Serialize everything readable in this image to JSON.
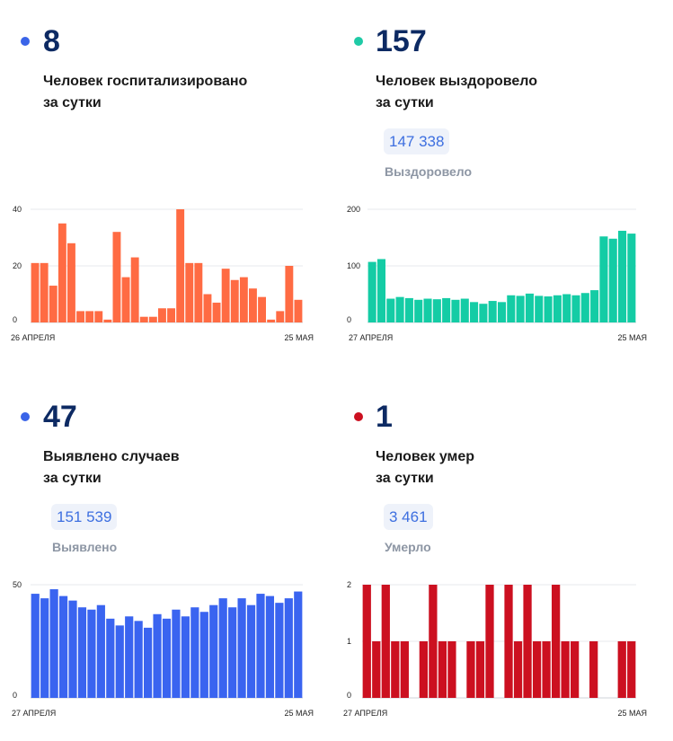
{
  "panels": [
    {
      "id": "hospitalized",
      "big_number": "8",
      "caption_line1": "Человек госпитализировано",
      "caption_line2": "за сутки",
      "dot_color": "#3a64e8"
    },
    {
      "id": "recovered",
      "big_number": "157",
      "caption_line1": "Человек выздоровело",
      "caption_line2": "за сутки",
      "total_value": "147 338",
      "total_label": "Выздоровело",
      "dot_color": "#1fcaa6"
    },
    {
      "id": "detected",
      "big_number": "47",
      "caption_line1": "Выявлено случаев",
      "caption_line2": "за сутки",
      "total_value": "151 539",
      "total_label": "Выявлено",
      "dot_color": "#3a64e8"
    },
    {
      "id": "deaths",
      "big_number": "1",
      "caption_line1": "Человек умер",
      "caption_line2": "за сутки",
      "total_value": "3 461",
      "total_label": "Умерло",
      "dot_color": "#cc1020"
    }
  ],
  "chart_data": [
    {
      "type": "bar",
      "color": "#ff6b43",
      "x_start": "26 АПРЕЛЯ",
      "x_end": "25 МАЯ",
      "ylim": [
        0,
        40
      ],
      "yticks": [
        0,
        20,
        40
      ],
      "values": [
        21,
        21,
        13,
        35,
        28,
        4,
        4,
        4,
        1,
        32,
        16,
        23,
        2,
        2,
        5,
        5,
        40,
        21,
        21,
        10,
        7,
        19,
        15,
        16,
        12,
        9,
        1,
        4,
        20,
        8
      ]
    },
    {
      "type": "bar",
      "color": "#14cca5",
      "x_start": "27 АПРЕЛЯ",
      "x_end": "25 МАЯ",
      "ylim": [
        0,
        200
      ],
      "yticks": [
        0,
        100,
        200
      ],
      "values": [
        107,
        112,
        42,
        45,
        43,
        40,
        42,
        41,
        43,
        40,
        42,
        36,
        33,
        38,
        36,
        48,
        47,
        51,
        47,
        46,
        48,
        50,
        48,
        52,
        57,
        152,
        148,
        162,
        157
      ]
    },
    {
      "type": "bar",
      "color": "#3a64f0",
      "x_start": "27 АПРЕЛЯ",
      "x_end": "25 МАЯ",
      "ylim": [
        0,
        50
      ],
      "yticks": [
        0,
        50
      ],
      "values": [
        46,
        44,
        48,
        45,
        43,
        40,
        39,
        41,
        35,
        32,
        36,
        34,
        31,
        37,
        35,
        39,
        36,
        40,
        38,
        41,
        44,
        40,
        44,
        41,
        46,
        45,
        42,
        44,
        47
      ]
    },
    {
      "type": "bar",
      "color": "#cc1020",
      "x_start": "27 АПРЕЛЯ",
      "x_end": "25 МАЯ",
      "ylim": [
        0,
        2
      ],
      "yticks": [
        0,
        1,
        2
      ],
      "values": [
        2,
        1,
        2,
        1,
        1,
        0,
        1,
        2,
        1,
        1,
        0,
        1,
        1,
        2,
        0,
        2,
        1,
        2,
        1,
        1,
        2,
        1,
        1,
        0,
        1,
        0,
        0,
        1,
        1
      ]
    }
  ]
}
